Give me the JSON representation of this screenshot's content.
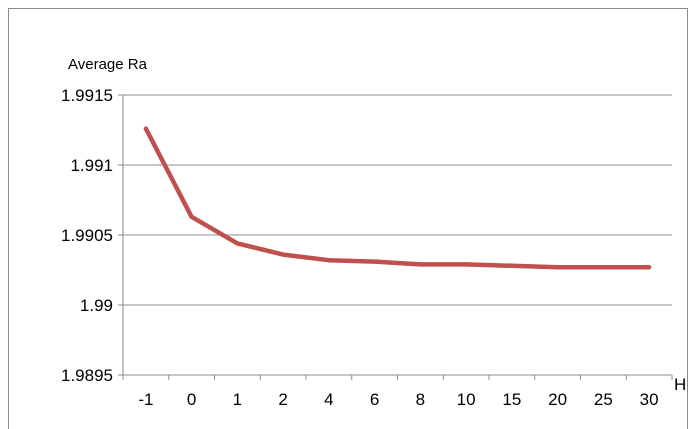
{
  "chart_data": {
    "type": "line",
    "title": "",
    "ylabel": "Average Ra",
    "xlabel": "H",
    "categories": [
      "-1",
      "0",
      "1",
      "2",
      "4",
      "6",
      "8",
      "10",
      "15",
      "20",
      "25",
      "30"
    ],
    "series": [
      {
        "values": [
          1.99126,
          1.99063,
          1.99044,
          1.99036,
          1.99032,
          1.99031,
          1.99029,
          1.99029,
          1.99028,
          1.99027,
          1.99027,
          1.99027
        ],
        "color": "#c0504d"
      }
    ],
    "ylim": [
      1.9895,
      1.9915
    ],
    "yticks": [
      "1.9895",
      "1.99",
      "1.9905",
      "1.991",
      "1.9915"
    ],
    "gridlines": true,
    "legend": "none"
  }
}
